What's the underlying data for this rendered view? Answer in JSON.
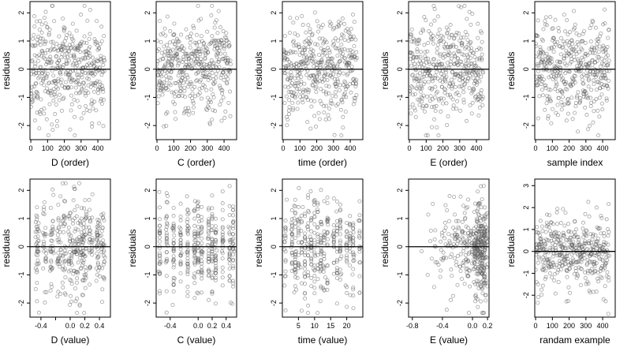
{
  "chart_data": [
    {
      "id": "p1",
      "type": "scatter",
      "xlabel": "D (order)",
      "ylabel": "residuals",
      "xlim": [
        -5,
        475
      ],
      "ylim": [
        -2.5,
        2.4
      ],
      "xticks": [
        0,
        100,
        200,
        300,
        400
      ],
      "xtick_labels": [
        "0",
        "100",
        "200",
        "300",
        "400"
      ],
      "yticks": [
        -2,
        -1,
        0,
        1,
        2
      ],
      "ytick_labels": [
        "-2",
        "-1",
        "0",
        "1",
        "2"
      ],
      "hline": 0,
      "n": 440,
      "x_pattern": "index",
      "seed": 11
    },
    {
      "id": "p2",
      "type": "scatter",
      "xlabel": "C (order)",
      "ylabel": "residuals",
      "xlim": [
        -5,
        475
      ],
      "ylim": [
        -2.5,
        2.4
      ],
      "xticks": [
        0,
        100,
        200,
        300,
        400
      ],
      "xtick_labels": [
        "0",
        "100",
        "200",
        "300",
        "400"
      ],
      "yticks": [
        -2,
        -1,
        0,
        1,
        2
      ],
      "ytick_labels": [
        "-2",
        "-1",
        "0",
        "1",
        "2"
      ],
      "hline": 0,
      "n": 440,
      "x_pattern": "index",
      "seed": 22
    },
    {
      "id": "p3",
      "type": "scatter",
      "xlabel": "time (order)",
      "ylabel": "residuals",
      "xlim": [
        -5,
        475
      ],
      "ylim": [
        -2.5,
        2.4
      ],
      "xticks": [
        0,
        100,
        200,
        300,
        400
      ],
      "xtick_labels": [
        "0",
        "100",
        "200",
        "300",
        "400"
      ],
      "yticks": [
        -2,
        -1,
        0,
        1,
        2
      ],
      "ytick_labels": [
        "-2",
        "-1",
        "0",
        "1",
        "2"
      ],
      "hline": 0,
      "n": 440,
      "x_pattern": "index",
      "seed": 33
    },
    {
      "id": "p4",
      "type": "scatter",
      "xlabel": "E (order)",
      "ylabel": "residuals",
      "xlim": [
        -5,
        475
      ],
      "ylim": [
        -2.5,
        2.4
      ],
      "xticks": [
        0,
        100,
        200,
        300,
        400
      ],
      "xtick_labels": [
        "0",
        "100",
        "200",
        "300",
        "400"
      ],
      "yticks": [
        -2,
        -1,
        0,
        1,
        2
      ],
      "ytick_labels": [
        "-2",
        "-1",
        "0",
        "1",
        "2"
      ],
      "hline": 0,
      "n": 440,
      "x_pattern": "index",
      "seed": 44
    },
    {
      "id": "p5",
      "type": "scatter",
      "xlabel": "sample index",
      "ylabel": "residuals",
      "xlim": [
        -5,
        475
      ],
      "ylim": [
        -2.5,
        2.4
      ],
      "xticks": [
        0,
        100,
        200,
        300,
        400
      ],
      "xtick_labels": [
        "0",
        "100",
        "200",
        "300",
        "400"
      ],
      "yticks": [
        -2,
        -1,
        0,
        1,
        2
      ],
      "ytick_labels": [
        "-2",
        "-1",
        "0",
        "1",
        "2"
      ],
      "hline": 0,
      "n": 440,
      "x_pattern": "index",
      "seed": 55
    },
    {
      "id": "p6",
      "type": "scatter",
      "xlabel": "D (value)",
      "ylabel": "residuals",
      "xlim": [
        -0.55,
        0.55
      ],
      "ylim": [
        -2.5,
        2.4
      ],
      "xticks": [
        -0.4,
        -0.2,
        0,
        0.2,
        0.4
      ],
      "xtick_labels": [
        "-0.4",
        "0.0",
        "0.2",
        "0.4"
      ],
      "xtick_label_at": [
        -0.4,
        0,
        0.2,
        0.4
      ],
      "yticks": [
        -2,
        -1,
        0,
        1,
        2
      ],
      "ytick_labels": [
        "-2",
        "-1",
        "0",
        "1",
        "2"
      ],
      "hline": 0,
      "n": 420,
      "x_pattern": "clustered",
      "x_centers": [
        -0.45,
        -0.35,
        -0.25,
        -0.15,
        -0.08,
        0,
        0.05,
        0.1,
        0.15,
        0.2,
        0.28,
        0.38,
        0.45
      ],
      "seed": 66
    },
    {
      "id": "p7",
      "type": "scatter",
      "xlabel": "C (value)",
      "ylabel": "residuals",
      "xlim": [
        -0.6,
        0.55
      ],
      "ylim": [
        -2.5,
        2.4
      ],
      "xticks": [
        -0.4,
        0,
        0.2,
        0.4
      ],
      "xtick_labels": [
        "-0.4",
        "0.0",
        "0.2",
        "0.4"
      ],
      "xtick_label_at": [
        -0.4,
        0,
        0.2,
        0.4
      ],
      "yticks": [
        -2,
        -1,
        0,
        1,
        2
      ],
      "ytick_labels": [
        "-2",
        "-1",
        "0",
        "1",
        "2"
      ],
      "hline": 0,
      "n": 420,
      "x_pattern": "discrete",
      "x_levels": [
        -0.55,
        -0.45,
        -0.35,
        -0.25,
        -0.15,
        -0.05,
        0,
        0.05,
        0.15,
        0.2,
        0.25,
        0.35,
        0.45,
        0.5
      ],
      "seed": 77
    },
    {
      "id": "p8",
      "type": "scatter",
      "xlabel": "time (value)",
      "ylabel": "residuals",
      "xlim": [
        0,
        25
      ],
      "ylim": [
        -2.5,
        2.4
      ],
      "xticks": [
        5,
        10,
        15,
        20
      ],
      "xtick_labels": [
        "5",
        "10",
        "15",
        "20"
      ],
      "yticks": [
        -2,
        -1,
        0,
        1,
        2
      ],
      "ytick_labels": [
        "-2",
        "-1",
        "0",
        "1",
        "2"
      ],
      "hline": 0,
      "n": 420,
      "x_pattern": "discrete",
      "x_levels": [
        1,
        3,
        4,
        5,
        6,
        7,
        8,
        9,
        10,
        11,
        12,
        13,
        14,
        16,
        17,
        18,
        20,
        21,
        22,
        24
      ],
      "seed": 88
    },
    {
      "id": "p9",
      "type": "scatter",
      "xlabel": "E (value)",
      "ylabel": "residuals",
      "xlim": [
        -0.85,
        0.22
      ],
      "ylim": [
        -2.5,
        2.4
      ],
      "xticks": [
        -0.8,
        -0.4,
        0,
        0.2
      ],
      "xtick_labels": [
        "-0.8",
        "-0.4",
        "0.0",
        "0.2"
      ],
      "yticks": [
        -2,
        -1,
        0,
        1,
        2
      ],
      "ytick_labels": [
        "-2",
        "-1",
        "0",
        "1",
        "2"
      ],
      "hline": 0,
      "n": 420,
      "x_pattern": "skewed",
      "seed": 99
    },
    {
      "id": "p10",
      "type": "scatter",
      "xlabel": "randam example",
      "ylabel": "residuals",
      "xlim": [
        -5,
        475
      ],
      "ylim": [
        -3.0,
        3.3
      ],
      "xticks": [
        0,
        100,
        200,
        300,
        400
      ],
      "xtick_labels": [
        "0",
        "100",
        "200",
        "300",
        "400"
      ],
      "yticks": [
        -2,
        -1,
        0,
        1,
        2,
        3
      ],
      "ytick_labels": [
        "-2",
        "-1",
        "0",
        "1",
        "2",
        "3"
      ],
      "hline": 0,
      "n": 440,
      "x_pattern": "index",
      "seed": 110
    }
  ]
}
